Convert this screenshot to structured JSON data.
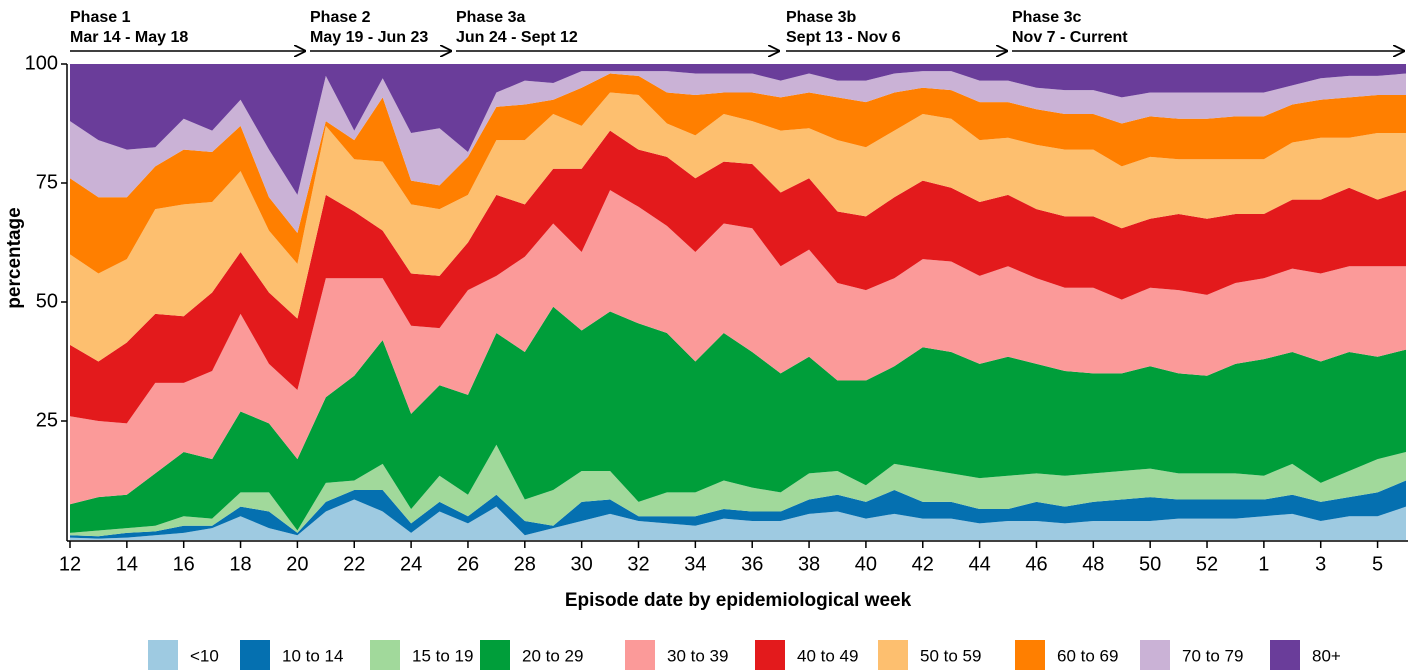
{
  "chart_data": {
    "type": "stacked_area",
    "x_label": "Episode date by epidemiological week",
    "y_label": "percentage",
    "categories": [
      "12",
      null,
      "14",
      null,
      "16",
      null,
      "18",
      null,
      "20",
      null,
      "22",
      null,
      "24",
      null,
      "26",
      null,
      "28",
      null,
      "30",
      null,
      "32",
      null,
      "34",
      null,
      "36",
      null,
      "38",
      null,
      "40",
      null,
      "42",
      null,
      "44",
      null,
      "46",
      null,
      "48",
      null,
      "50",
      null,
      "52",
      null,
      "1",
      null,
      "3",
      null,
      "5",
      null
    ],
    "ylim": [
      0,
      100
    ],
    "yticks": [
      25,
      50,
      75,
      100
    ],
    "annotations": [
      {
        "label": "Phase 1",
        "dates": "Mar 14 - May 18"
      },
      {
        "label": "Phase 2",
        "dates": "May 19 - Jun 23"
      },
      {
        "label": "Phase 3a",
        "dates": "Jun 24 - Sept 12"
      },
      {
        "label": "Phase 3b",
        "dates": "Sept 13 - Nov 6"
      },
      {
        "label": "Phase 3c",
        "dates": "Nov 7 - Current"
      }
    ],
    "series": [
      {
        "name": "<10",
        "color": "#9ecae1",
        "values": [
          0.5,
          0.3,
          0.5,
          1,
          1.5,
          2.5,
          5,
          2.5,
          1,
          6,
          8.5,
          6,
          1.5,
          6,
          3.5,
          7,
          1,
          2.5,
          4,
          5.5,
          4,
          3.5,
          3,
          4.5,
          4,
          4,
          5.5,
          6,
          4.5,
          5.5,
          4.5,
          4.5,
          3.5,
          4,
          4,
          3.5,
          4,
          4,
          4,
          4.5,
          4.5,
          4.5,
          5,
          5.5,
          4,
          5,
          5,
          7
        ]
      },
      {
        "name": "10 to 14",
        "color": "#0570b0",
        "values": [
          0.5,
          0.5,
          1,
          0.8,
          1.5,
          0.5,
          2,
          3.5,
          0.5,
          2,
          2,
          4.5,
          2,
          2,
          1.5,
          2.5,
          3,
          0.5,
          4,
          3,
          1,
          1.5,
          2,
          2,
          2,
          2,
          3,
          3.5,
          3.5,
          5,
          3.5,
          3.5,
          3,
          2.5,
          4,
          3.5,
          4,
          4.5,
          5,
          4,
          4,
          4,
          3.5,
          4,
          4,
          4,
          5,
          5.5
        ]
      },
      {
        "name": "15 to 19",
        "color": "#a1d99b",
        "values": [
          0.5,
          1.2,
          1,
          1.2,
          2,
          1.5,
          3,
          4,
          0.5,
          4,
          2,
          5.5,
          3,
          5.5,
          4.5,
          10.5,
          4.5,
          7.5,
          6.5,
          6,
          3,
          5,
          5,
          6,
          5,
          4,
          5.5,
          5,
          3.5,
          5.5,
          7,
          6,
          6.5,
          7,
          6,
          6.5,
          6,
          6,
          6,
          5.5,
          5.5,
          5.5,
          5,
          6.5,
          4,
          5.5,
          7,
          6
        ]
      },
      {
        "name": "20 to 29",
        "color": "#009e3a",
        "values": [
          6,
          7,
          7,
          11,
          13.5,
          12.5,
          17,
          14.5,
          15,
          18,
          22,
          26,
          20,
          19,
          21,
          23.5,
          31,
          38.5,
          29.5,
          33.5,
          37.5,
          33.5,
          27.5,
          31,
          28.5,
          25,
          24.5,
          19,
          22,
          20.5,
          25.5,
          25.5,
          24,
          25,
          23,
          22,
          21,
          20.5,
          21.5,
          21,
          20.5,
          23,
          24.5,
          23.5,
          25.5,
          25,
          21.5,
          21.5
        ]
      },
      {
        "name": "30 to 39",
        "color": "#fb9a99",
        "values": [
          18.5,
          16,
          15,
          19,
          14.5,
          18.5,
          20.5,
          12.5,
          14.5,
          25,
          20.5,
          13,
          18.5,
          12,
          22,
          12,
          20,
          17.5,
          16.5,
          25.5,
          24.5,
          22.5,
          23,
          23,
          26,
          22.5,
          22.5,
          20.5,
          19,
          18.5,
          18.5,
          19,
          18.5,
          19,
          18,
          17.5,
          18,
          15.5,
          16.5,
          17.5,
          17,
          17,
          17,
          17.5,
          18.5,
          18,
          19,
          17.5
        ]
      },
      {
        "name": "40 to 49",
        "color": "#e31a1c",
        "values": [
          15,
          12.5,
          17,
          14.5,
          14,
          16.5,
          13,
          15,
          15,
          17.5,
          14,
          10,
          11,
          11,
          10,
          17,
          11,
          11.5,
          17.5,
          12.5,
          12,
          14.5,
          15.5,
          13,
          13.5,
          15.5,
          15,
          15,
          15.5,
          17,
          16.5,
          15.5,
          15.5,
          15,
          14.5,
          15,
          15,
          15,
          14.5,
          16,
          16,
          14.5,
          13.5,
          14.5,
          15.5,
          16.5,
          14,
          16
        ]
      },
      {
        "name": "50 to 59",
        "color": "#fdbf6f",
        "values": [
          19,
          18.5,
          17.5,
          22,
          23.5,
          19,
          17,
          13,
          11.5,
          14.5,
          11,
          14.5,
          14.5,
          14,
          10,
          11.5,
          13.5,
          11.5,
          9,
          8,
          11.5,
          7,
          9,
          10,
          9,
          13,
          10.5,
          15,
          14.5,
          14,
          14,
          14.5,
          13,
          12,
          13.5,
          14,
          14,
          13,
          13,
          11.5,
          12.5,
          11.5,
          11.5,
          12,
          13,
          10.5,
          14,
          12
        ]
      },
      {
        "name": "60 to 69",
        "color": "#ff7f00",
        "values": [
          16,
          16,
          13,
          9,
          11.5,
          10.5,
          9.5,
          7,
          6.5,
          1,
          4,
          13.5,
          5,
          5,
          8,
          7,
          7.5,
          3,
          8,
          4,
          4,
          6.5,
          8.5,
          4.5,
          6,
          7,
          7.5,
          9,
          9.5,
          8,
          5.5,
          6,
          8,
          7.5,
          7.5,
          7.5,
          7.5,
          9,
          8.5,
          8.5,
          8.5,
          9,
          9,
          8,
          8,
          8.5,
          8,
          8
        ]
      },
      {
        "name": "70 to 79",
        "color": "#cab2d6",
        "values": [
          12,
          12,
          10,
          4,
          6.5,
          4.5,
          5.5,
          10,
          8,
          9.5,
          2,
          4,
          10,
          12,
          1,
          3,
          5,
          3.5,
          3.5,
          0.5,
          1,
          4.5,
          4.5,
          4,
          4,
          3.5,
          4,
          3.5,
          4.5,
          4,
          3.5,
          4,
          4.5,
          4.5,
          4.5,
          5,
          5,
          5.5,
          5,
          5.5,
          5.5,
          5,
          5,
          4,
          4.5,
          4.5,
          4,
          4.5
        ]
      },
      {
        "name": "80+",
        "color": "#6a3d9a",
        "values": [
          12,
          16,
          18,
          17.5,
          11.5,
          14,
          7.5,
          18,
          27.5,
          2.5,
          14,
          3,
          14.5,
          13.5,
          18.5,
          6,
          3.5,
          4,
          1.5,
          1.5,
          1.5,
          1.5,
          2,
          2,
          2,
          3.5,
          2,
          3.5,
          3.5,
          2,
          1.5,
          1.5,
          3.5,
          3.5,
          5,
          5.5,
          5.5,
          7,
          6,
          6,
          6,
          6,
          6,
          4.5,
          3,
          2.5,
          2.5,
          2
        ]
      }
    ]
  }
}
